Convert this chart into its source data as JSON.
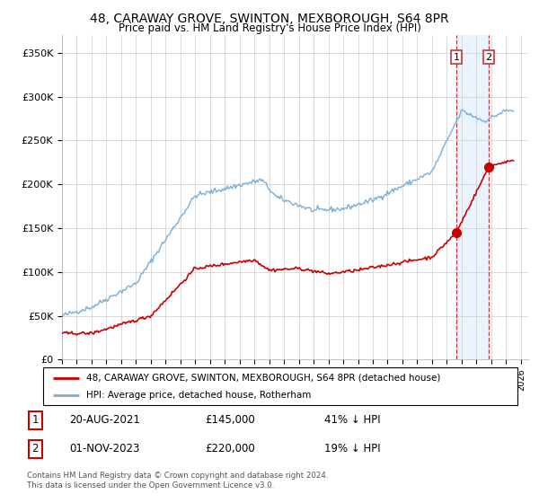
{
  "title": "48, CARAWAY GROVE, SWINTON, MEXBOROUGH, S64 8PR",
  "subtitle": "Price paid vs. HM Land Registry's House Price Index (HPI)",
  "title_fontsize": 10,
  "subtitle_fontsize": 8.5,
  "ylabel_ticks": [
    "£0",
    "£50K",
    "£100K",
    "£150K",
    "£200K",
    "£250K",
    "£300K",
    "£350K"
  ],
  "ytick_values": [
    0,
    50000,
    100000,
    150000,
    200000,
    250000,
    300000,
    350000
  ],
  "ylim": [
    0,
    370000
  ],
  "xlim_start": 1995.0,
  "xlim_end": 2026.5,
  "legend_line1": "48, CARAWAY GROVE, SWINTON, MEXBOROUGH, S64 8PR (detached house)",
  "legend_line2": "HPI: Average price, detached house, Rotherham",
  "legend_color1": "#cc0000",
  "legend_color2": "#7aaed6",
  "transaction1_label": "1",
  "transaction1_date": "20-AUG-2021",
  "transaction1_price": "£145,000",
  "transaction1_pct": "41% ↓ HPI",
  "transaction2_label": "2",
  "transaction2_date": "01-NOV-2023",
  "transaction2_price": "£220,000",
  "transaction2_pct": "19% ↓ HPI",
  "footnote": "Contains HM Land Registry data © Crown copyright and database right 2024.\nThis data is licensed under the Open Government Licence v3.0.",
  "hpi_color": "#7aaed6",
  "price_color": "#cc0000",
  "marker_color": "#cc0000",
  "vline_color": "#cc3333",
  "highlight_color": "#ddeeff",
  "transaction1_x": 2021.64,
  "transaction1_y": 145000,
  "transaction2_x": 2023.83,
  "transaction2_y": 220000
}
